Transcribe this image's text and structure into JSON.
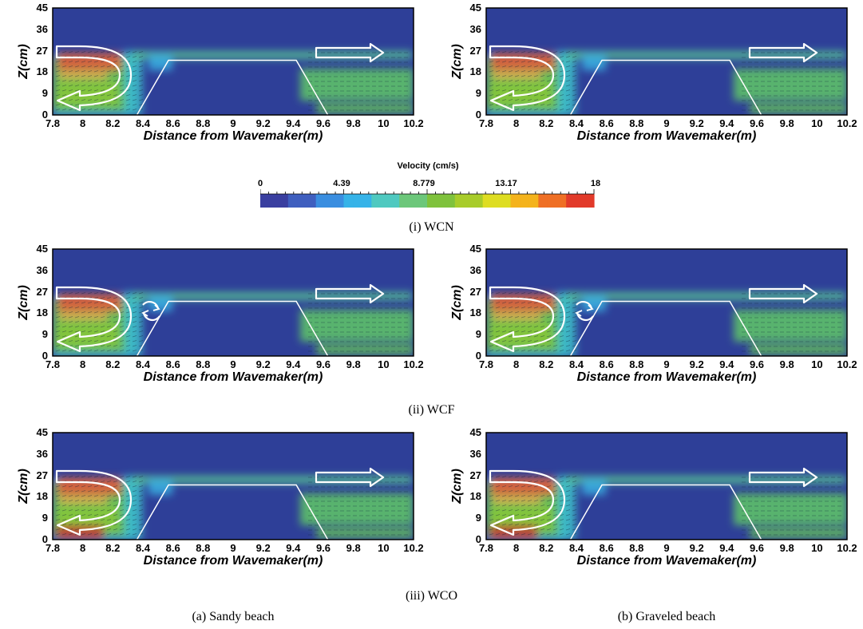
{
  "chart_data": [
    {
      "type": "heatmap",
      "panel": "(i) WCN - (a) Sandy beach",
      "xlabel": "Distance from Wavemaker(m)",
      "ylabel": "Z(cm)",
      "x_ticks": [
        "7.8",
        "8",
        "8.2",
        "8.4",
        "8.6",
        "8.8",
        "9",
        "9.2",
        "9.4",
        "9.6",
        "9.8",
        "10",
        "10.2"
      ],
      "y_ticks": [
        "45",
        "36",
        "27",
        "18",
        "9",
        "0"
      ],
      "xlim": [
        7.8,
        10.2
      ],
      "ylim": [
        0,
        45
      ],
      "structure_z_top": 23,
      "structure_x": [
        8.36,
        8.57,
        9.42,
        9.63
      ],
      "arrows": [
        "return-flow-onshore",
        "outflow-offshore"
      ]
    },
    {
      "type": "heatmap",
      "panel": "(i) WCN - (b) Graveled beach",
      "xlabel": "Distance from Wavemaker(m)",
      "ylabel": "Z(cm)",
      "x_ticks": [
        "7.8",
        "8",
        "8.2",
        "8.4",
        "8.6",
        "8.8",
        "9",
        "9.2",
        "9.4",
        "9.6",
        "9.8",
        "10",
        "10.2"
      ],
      "y_ticks": [
        "45",
        "36",
        "27",
        "18",
        "9",
        "0"
      ],
      "xlim": [
        7.8,
        10.2
      ],
      "ylim": [
        0,
        45
      ],
      "structure_z_top": 23,
      "structure_x": [
        8.36,
        8.57,
        9.42,
        9.63
      ],
      "arrows": [
        "return-flow-onshore",
        "outflow-offshore"
      ]
    },
    {
      "type": "heatmap",
      "panel": "(ii) WCF - (a) Sandy beach",
      "xlabel": "Distance from Wavemaker(m)",
      "ylabel": "Z(cm)",
      "x_ticks": [
        "7.8",
        "8",
        "8.2",
        "8.4",
        "8.6",
        "8.8",
        "9",
        "9.2",
        "9.4",
        "9.6",
        "9.8",
        "10",
        "10.2"
      ],
      "y_ticks": [
        "45",
        "36",
        "27",
        "18",
        "9",
        "0"
      ],
      "xlim": [
        7.8,
        10.2
      ],
      "ylim": [
        0,
        45
      ],
      "structure_z_top": 23,
      "structure_x": [
        8.36,
        8.57,
        9.42,
        9.63
      ],
      "arrows": [
        "return-flow-onshore",
        "outflow-offshore",
        "vortex"
      ]
    },
    {
      "type": "heatmap",
      "panel": "(ii) WCF - (b) Graveled beach",
      "xlabel": "Distance from Wavemaker(m)",
      "ylabel": "Z(cm)",
      "x_ticks": [
        "7.8",
        "8",
        "8.2",
        "8.4",
        "8.6",
        "8.8",
        "9",
        "9.2",
        "9.4",
        "9.6",
        "9.8",
        "10",
        "10.2"
      ],
      "y_ticks": [
        "45",
        "36",
        "27",
        "18",
        "9",
        "0"
      ],
      "xlim": [
        7.8,
        10.2
      ],
      "ylim": [
        0,
        45
      ],
      "structure_z_top": 23,
      "structure_x": [
        8.36,
        8.57,
        9.42,
        9.63
      ],
      "arrows": [
        "return-flow-onshore",
        "outflow-offshore",
        "vortex"
      ]
    },
    {
      "type": "heatmap",
      "panel": "(iii) WCO - (a) Sandy beach",
      "xlabel": "Distance from Wavemaker(m)",
      "ylabel": "Z(cm)",
      "x_ticks": [
        "7.8",
        "8",
        "8.2",
        "8.4",
        "8.6",
        "8.8",
        "9",
        "9.2",
        "9.4",
        "9.6",
        "9.8",
        "10",
        "10.2"
      ],
      "y_ticks": [
        "45",
        "36",
        "27",
        "18",
        "9",
        "0"
      ],
      "xlim": [
        7.8,
        10.2
      ],
      "ylim": [
        0,
        45
      ],
      "structure_z_top": 23,
      "structure_x": [
        8.36,
        8.57,
        9.42,
        9.63
      ],
      "arrows": [
        "return-flow-onshore",
        "outflow-offshore"
      ]
    },
    {
      "type": "heatmap",
      "panel": "(iii) WCO - (b) Graveled beach",
      "xlabel": "Distance from Wavemaker(m)",
      "ylabel": "Z(cm)",
      "x_ticks": [
        "7.8",
        "8",
        "8.2",
        "8.4",
        "8.6",
        "8.8",
        "9",
        "9.2",
        "9.4",
        "9.6",
        "9.8",
        "10",
        "10.2"
      ],
      "y_ticks": [
        "45",
        "36",
        "27",
        "18",
        "9",
        "0"
      ],
      "xlim": [
        7.8,
        10.2
      ],
      "ylim": [
        0,
        45
      ],
      "structure_z_top": 23,
      "structure_x": [
        8.36,
        8.57,
        9.42,
        9.63
      ],
      "arrows": [
        "return-flow-onshore",
        "outflow-offshore"
      ]
    }
  ],
  "colorbar": {
    "title": "Velocity (cm/s)",
    "ticks": [
      "0",
      "4.39",
      "8.779",
      "13.17",
      "18"
    ],
    "range": [
      0,
      18
    ],
    "colors": [
      "#3a3fa0",
      "#3f5fbf",
      "#3a8ee0",
      "#36b3e8",
      "#4fc9c0",
      "#6cc77a",
      "#7fc23c",
      "#a8cc2a",
      "#dedd22",
      "#f4b31c",
      "#ef6f25",
      "#e23a2a"
    ]
  },
  "captions": {
    "row1": "(i)  WCN",
    "row2": "(ii)  WCF",
    "row3": "(iii)  WCO",
    "col_a": "(a)  Sandy beach",
    "col_b": "(b)  Graveled beach"
  },
  "colors": {
    "background_blue": "#2e3f98",
    "structure_outline": "#ffffff",
    "arrow_outline": "#ffffff"
  }
}
